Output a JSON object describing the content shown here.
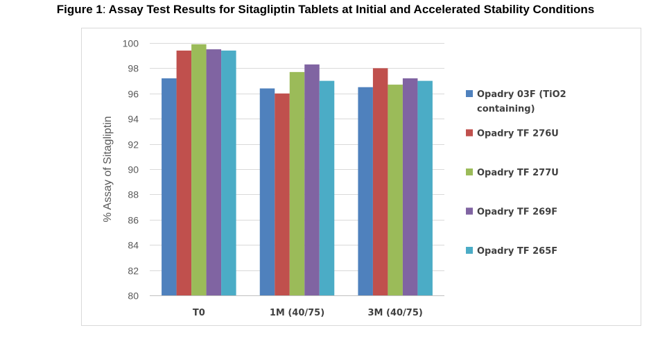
{
  "figure": {
    "number": "Figure 1",
    "separator": ":",
    "title": " Assay Test Results for Sitagliptin Tablets at Initial and Accelerated Stability Conditions"
  },
  "chart_data": {
    "type": "bar",
    "ylabel": "% Assay of Sitagliptin",
    "xlabel": "",
    "ylim": [
      80,
      100
    ],
    "yticks": [
      80,
      82,
      84,
      86,
      88,
      90,
      92,
      94,
      96,
      98,
      100
    ],
    "grid": true,
    "legend_position": "right",
    "categories": [
      "T0",
      "1M (40/75)",
      "3M (40/75)"
    ],
    "series": [
      {
        "name": "Opadry 03F (TiO2 containing)",
        "name_lines": [
          "Opadry 03F (TiO2",
          "containing)"
        ],
        "color": "#4f81bd",
        "values": [
          97.2,
          96.4,
          96.5
        ]
      },
      {
        "name": "Opadry TF 276U",
        "name_lines": [
          "Opadry TF 276U"
        ],
        "color": "#c0504d",
        "values": [
          99.4,
          96.0,
          98.0
        ]
      },
      {
        "name": "Opadry TF 277U",
        "name_lines": [
          "Opadry TF 277U"
        ],
        "color": "#9bbb59",
        "values": [
          99.9,
          97.7,
          96.7
        ]
      },
      {
        "name": "Opadry TF 269F",
        "name_lines": [
          "Opadry TF 269F"
        ],
        "color": "#8064a2",
        "values": [
          99.5,
          98.3,
          97.2
        ]
      },
      {
        "name": "Opadry TF 265F",
        "name_lines": [
          "Opadry TF 265F"
        ],
        "color": "#4bacc6",
        "values": [
          99.4,
          97.0,
          97.0
        ]
      }
    ]
  }
}
